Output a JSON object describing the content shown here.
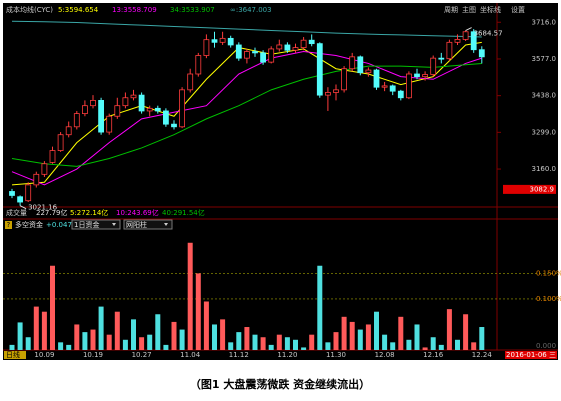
{
  "toolbar": [
    "周期",
    "主图",
    "坐标线",
    "设置"
  ],
  "volume_header": {
    "title": "成交量",
    "value": "227.79亿",
    "ma": [
      "5:272.14亿",
      "10:243.69亿",
      "40:291.54亿"
    ]
  },
  "indicator_header": {
    "icon": "?",
    "title": "多空资金",
    "value": "+0.047%",
    "period": "1日资金",
    "style": "网阳柱"
  },
  "period_button": "日线",
  "cursor_date": "2016-01-06 三",
  "caption": "（图1 大盘震荡微跌 资金继续流出）",
  "chart_data": [
    {
      "type": "candlestick",
      "title": "成本均线(CYC)",
      "up_color": "#ff3c3c",
      "down_color": "#54fcfc",
      "open": [
        3075,
        3055,
        3040,
        3100,
        3140,
        3185,
        3230,
        3290,
        3320,
        3370,
        3400,
        3420,
        3300,
        3360,
        3400,
        3430,
        3440,
        3380,
        3390,
        3380,
        3330,
        3320,
        3460,
        3520,
        3590,
        3650,
        3640,
        3655,
        3630,
        3580,
        3605,
        3600,
        3565,
        3615,
        3630,
        3610,
        3620,
        3648,
        3635,
        3440,
        3450,
        3460,
        3540,
        3585,
        3525,
        3535,
        3470,
        3475,
        3455,
        3430,
        3520,
        3510,
        3518,
        3580,
        3578,
        3640,
        3651,
        3680,
        3612
      ],
      "close": [
        3060,
        3035,
        3100,
        3140,
        3180,
        3230,
        3290,
        3320,
        3370,
        3400,
        3420,
        3300,
        3360,
        3400,
        3430,
        3440,
        3380,
        3390,
        3380,
        3330,
        3320,
        3460,
        3520,
        3590,
        3650,
        3640,
        3655,
        3630,
        3580,
        3605,
        3600,
        3565,
        3615,
        3630,
        3610,
        3620,
        3648,
        3635,
        3440,
        3450,
        3460,
        3540,
        3585,
        3525,
        3535,
        3470,
        3475,
        3455,
        3430,
        3520,
        3510,
        3518,
        3580,
        3578,
        3640,
        3651,
        3680,
        3612,
        3585
      ],
      "high": [
        3085,
        3060,
        3110,
        3150,
        3190,
        3245,
        3300,
        3340,
        3380,
        3420,
        3440,
        3430,
        3370,
        3430,
        3450,
        3460,
        3450,
        3400,
        3400,
        3390,
        3345,
        3470,
        3540,
        3600,
        3670,
        3680,
        3680,
        3665,
        3640,
        3615,
        3620,
        3610,
        3625,
        3650,
        3640,
        3635,
        3660,
        3670,
        3640,
        3470,
        3480,
        3550,
        3600,
        3590,
        3545,
        3540,
        3490,
        3480,
        3460,
        3530,
        3540,
        3530,
        3590,
        3600,
        3650,
        3670,
        3684.57,
        3690,
        3625
      ],
      "low": [
        3050,
        3021.16,
        3035,
        3090,
        3130,
        3180,
        3225,
        3280,
        3310,
        3360,
        3390,
        3290,
        3290,
        3350,
        3390,
        3420,
        3370,
        3360,
        3370,
        3320,
        3310,
        3315,
        3450,
        3510,
        3580,
        3620,
        3630,
        3620,
        3570,
        3560,
        3585,
        3555,
        3560,
        3605,
        3600,
        3600,
        3610,
        3625,
        3430,
        3380,
        3420,
        3450,
        3530,
        3515,
        3510,
        3460,
        3455,
        3440,
        3420,
        3425,
        3500,
        3495,
        3510,
        3560,
        3570,
        3630,
        3645,
        3600,
        3560
      ],
      "overlays": [
        {
          "name": "5:3594.654",
          "color": "#ffff00",
          "x": [
            0,
            4,
            8,
            12,
            16,
            20,
            24,
            28,
            32,
            36,
            40,
            44,
            48,
            52,
            56,
            58
          ],
          "values": [
            3100,
            3110,
            3260,
            3360,
            3400,
            3360,
            3500,
            3620,
            3595,
            3615,
            3540,
            3520,
            3480,
            3510,
            3630,
            3640
          ]
        },
        {
          "name": "13:3558.709",
          "color": "#ff00ff",
          "x": [
            0,
            4,
            8,
            12,
            16,
            20,
            24,
            28,
            32,
            36,
            40,
            44,
            48,
            52,
            56,
            58
          ],
          "values": [
            3150,
            3100,
            3160,
            3260,
            3350,
            3375,
            3400,
            3520,
            3580,
            3605,
            3590,
            3560,
            3510,
            3500,
            3560,
            3580
          ]
        },
        {
          "name": "34:3533.907",
          "color": "#00c000",
          "x": [
            0,
            4,
            8,
            12,
            16,
            20,
            24,
            28,
            32,
            36,
            40,
            44,
            48,
            52,
            56,
            58
          ],
          "values": [
            3200,
            3180,
            3170,
            3200,
            3240,
            3290,
            3350,
            3400,
            3460,
            3500,
            3530,
            3550,
            3550,
            3545,
            3555,
            3560
          ]
        },
        {
          "name": "∞:3647.003",
          "color": "#3aa6a6",
          "x": [
            0,
            4,
            8,
            12,
            16,
            20,
            24,
            28,
            32,
            36,
            40,
            44,
            48,
            52,
            56,
            58
          ],
          "values": [
            3720,
            3718,
            3715,
            3710,
            3705,
            3700,
            3695,
            3690,
            3685,
            3680,
            3675,
            3671,
            3668,
            3665,
            3662,
            3660
          ]
        }
      ],
      "annotations": [
        {
          "x": 1,
          "value": 3021.16
        },
        {
          "x": 56,
          "value": 3684.57
        }
      ],
      "ylim": [
        3020,
        3770
      ],
      "yticks": [
        {
          "value": 3716,
          "label": "3716.0"
        },
        {
          "value": 3577,
          "label": "3577.0"
        },
        {
          "value": 3438,
          "label": "3438.0"
        },
        {
          "value": 3299,
          "label": "3299.0"
        },
        {
          "value": 3160,
          "label": "3160.0"
        }
      ],
      "cursor_price": 3082.9
    },
    {
      "type": "bar",
      "categories": [
        null,
        null,
        null,
        null,
        "10.09",
        null,
        null,
        null,
        null,
        null,
        "10.19",
        null,
        null,
        null,
        null,
        null,
        "10.27",
        null,
        null,
        null,
        null,
        null,
        "11.04",
        null,
        null,
        null,
        null,
        null,
        "11.12",
        null,
        null,
        null,
        null,
        null,
        "11.20",
        null,
        null,
        null,
        null,
        null,
        "11.30",
        null,
        null,
        null,
        null,
        null,
        "12.08",
        null,
        null,
        null,
        null,
        null,
        "12.16",
        null,
        null,
        null,
        null,
        null,
        "12.24"
      ],
      "values": [
        0.01,
        0.054,
        0.025,
        0.085,
        0.075,
        0.165,
        0.015,
        0.01,
        0.05,
        0.035,
        0.04,
        0.085,
        0.03,
        0.075,
        0.02,
        0.06,
        0.025,
        0.03,
        0.07,
        0.01,
        0.055,
        0.04,
        0.21,
        0.15,
        0.095,
        0.05,
        0.06,
        0.015,
        0.035,
        0.045,
        0.03,
        0.025,
        0.01,
        0.03,
        0.025,
        0.02,
        0.005,
        0.03,
        0.165,
        0.015,
        0.035,
        0.065,
        0.055,
        0.04,
        0.05,
        0.075,
        0.03,
        0.015,
        0.065,
        0.02,
        0.05,
        0.005,
        0.025,
        0.01,
        0.08,
        0.02,
        0.07,
        0.015,
        0.045
      ],
      "palette": [
        "#ff5a5a",
        "#4fe0e0"
      ],
      "color_idx": [
        1,
        1,
        1,
        0,
        0,
        0,
        1,
        1,
        0,
        1,
        0,
        1,
        0,
        0,
        1,
        1,
        0,
        1,
        1,
        1,
        0,
        1,
        0,
        0,
        0,
        1,
        0,
        1,
        1,
        0,
        1,
        0,
        1,
        0,
        1,
        1,
        1,
        0,
        1,
        1,
        0,
        0,
        0,
        1,
        0,
        1,
        1,
        1,
        0,
        1,
        1,
        0,
        1,
        1,
        0,
        1,
        0,
        0,
        1
      ],
      "ylim": [
        0,
        0.235
      ],
      "yticks": [
        {
          "value": 0,
          "label": "0.000"
        },
        {
          "value": 0.1,
          "label": "0.100%"
        },
        {
          "value": 0.15,
          "label": "0.150%"
        }
      ],
      "grid": true,
      "grid_color": "#a0a000"
    }
  ]
}
